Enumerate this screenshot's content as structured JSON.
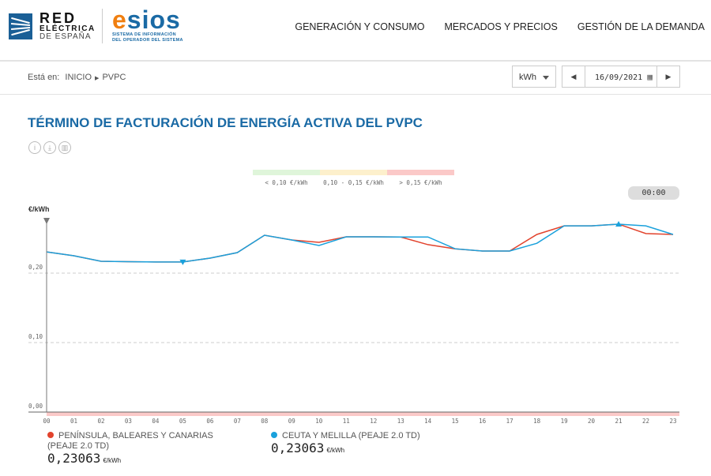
{
  "header": {
    "logo_ree": [
      "RED",
      "ELÉCTRICA",
      "DE ESPAÑA"
    ],
    "logo_esios": {
      "e": "e",
      "rest": "sios",
      "tagline": [
        "SISTEMA DE INFORMACIÓN",
        "DEL OPERADOR DEL SISTEMA"
      ]
    },
    "nav": [
      "GENERACIÓN Y CONSUMO",
      "MERCADOS Y PRECIOS",
      "GESTIÓN DE LA DEMANDA"
    ]
  },
  "breadcrumb": {
    "prefix": "Está en:",
    "items": [
      "INICIO",
      "PVPC"
    ]
  },
  "unit_select": "kWh",
  "date": "16/09/2021",
  "title": "TÉRMINO DE FACTURACIÓN DE ENERGÍA ACTIVA DEL PVPC",
  "action_icons": [
    "info-icon",
    "download-icon",
    "chart-icon"
  ],
  "price_legend": [
    {
      "label": "< 0,10 €/kWh",
      "color": "#dff5da"
    },
    {
      "label": "0,10 - 0,15 €/kWh",
      "color": "#fdf0cc"
    },
    {
      "label": "> 0,15 €/kWh",
      "color": "#fbc9c8"
    }
  ],
  "time_badge": "00:00",
  "chart_data": {
    "type": "line",
    "ylabel": "€/kWh",
    "ylim": [
      0,
      0.27
    ],
    "yticks": [
      "0,00",
      "0,10",
      "0,20"
    ],
    "ytick_values": [
      0,
      0.1,
      0.2
    ],
    "x": [
      "00",
      "01",
      "02",
      "03",
      "04",
      "05",
      "06",
      "07",
      "08",
      "09",
      "10",
      "11",
      "12",
      "13",
      "14",
      "15",
      "16",
      "17",
      "18",
      "19",
      "20",
      "21",
      "22",
      "23"
    ],
    "series": [
      {
        "name": "PENÍNSULA, BALEARES Y CANARIAS (PEAJE 2.0 TD)",
        "color": "#e2432d",
        "values": [
          0.2306,
          0.225,
          0.217,
          0.2165,
          0.216,
          0.216,
          0.2216,
          0.2295,
          0.2545,
          0.2477,
          0.2443,
          0.2523,
          0.2523,
          0.252,
          0.241,
          0.235,
          0.2318,
          0.2318,
          0.2557,
          0.268,
          0.268,
          0.2705,
          0.257,
          0.2557
        ]
      },
      {
        "name": "CEUTA Y MELILLA (PEAJE 2.0 TD)",
        "color": "#1aa1dc",
        "values": [
          0.2306,
          0.225,
          0.217,
          0.2165,
          0.216,
          0.216,
          0.2216,
          0.2295,
          0.2545,
          0.2477,
          0.2398,
          0.2523,
          0.2523,
          0.252,
          0.252,
          0.235,
          0.2318,
          0.2318,
          0.243,
          0.268,
          0.268,
          0.2705,
          0.268,
          0.2557
        ]
      }
    ],
    "min_marker_hour": "05",
    "max_marker_hour": "21",
    "selected_hour": "00"
  },
  "readouts": [
    {
      "value": "0,23063",
      "unit": "€/kWh"
    },
    {
      "value": "0,23063",
      "unit": "€/kWh"
    }
  ]
}
